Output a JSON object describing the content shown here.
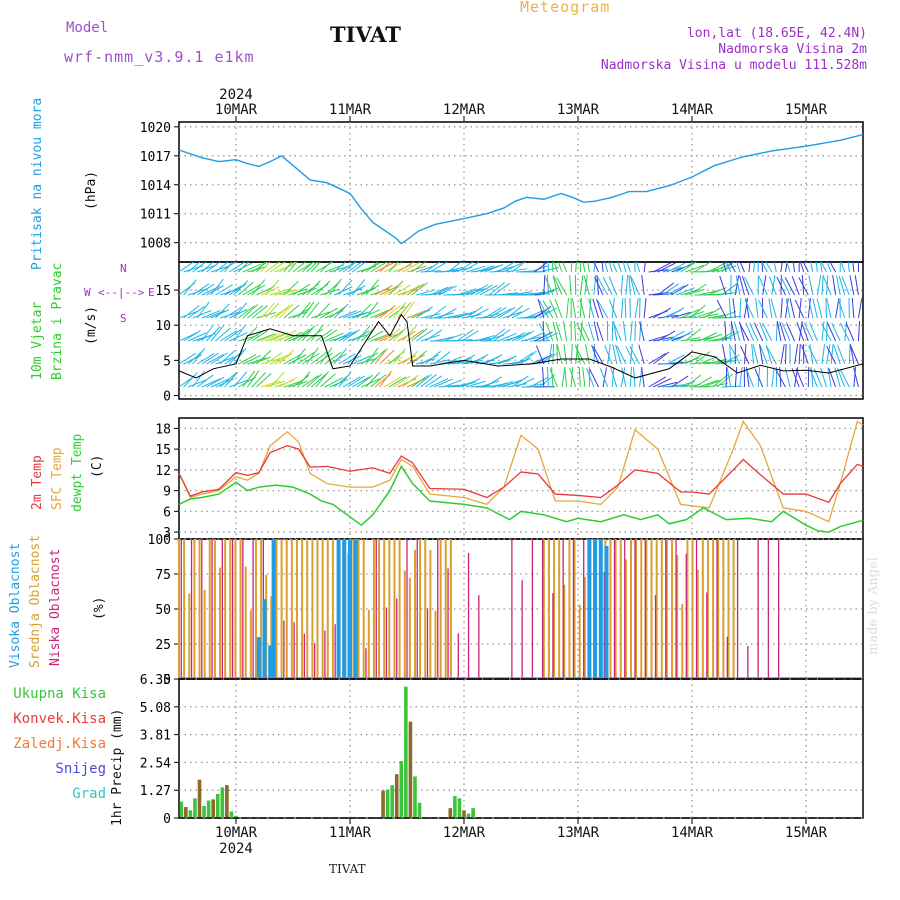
{
  "header": {
    "model_label": "Model",
    "model_name": "wrf-nmm_v3.9.1  e1km",
    "title": "TIVAT",
    "meteogram_label": "Meteogram",
    "location": "lon,lat (18.65E, 42.4N)",
    "elevation": "Nadmorska Visina 2m",
    "model_elevation": "Nadmorska Visina u modelu 111.528m"
  },
  "footer": {
    "station": "TIVAT",
    "credit": "made by Angel"
  },
  "time_axis": {
    "year": "2024",
    "days": [
      "10MAR",
      "11MAR",
      "12MAR",
      "13MAR",
      "14MAR",
      "15MAR"
    ]
  },
  "labels": {
    "pressure": [
      "Pritisak na nivou mora",
      "(hPa)"
    ],
    "wind": [
      "10m Vjetar",
      "Brzina i Pravac",
      "(m/s)"
    ],
    "wind_compass": [
      "W",
      "<--|-->",
      "E",
      "N",
      "S"
    ],
    "temp": [
      "2m Temp",
      "SFC Temp",
      "dewpt Temp",
      "(C)"
    ],
    "cloud": [
      "Visoka Oblacnost",
      "Srednja Oblacnost",
      "Niska Oblacnost",
      "(%)"
    ],
    "precip_axis": "1hr Precip (mm)",
    "precip_legend": [
      "Ukupna Kisa",
      "Konvek.Kisa",
      "Zaledj.Kisa",
      "Snijeg",
      "Grad"
    ]
  },
  "colors": {
    "pressure": "#1e9de6",
    "temp2m": "#e8383a",
    "sfc": "#e8a63a",
    "dewpt": "#2fcc2f",
    "high_cloud": "#1e9de6",
    "mid_cloud": "#d9a030",
    "low_cloud": "#cc2277",
    "total_rain": "#3cc43c",
    "conv_rain": "#e83c3c",
    "freezing_rain": "#f07b35",
    "snow": "#4a4ae0",
    "hail": "#35c4c4"
  },
  "chart_data": [
    {
      "type": "line",
      "name": "pressure",
      "x_unit": "days since 10MAR 00UTC",
      "ylim": [
        1006,
        1020.5
      ],
      "yticks": [
        1008,
        1011,
        1014,
        1017,
        1020
      ],
      "series": [
        {
          "x": [
            -0.5,
            -0.3,
            -0.15,
            0,
            0.1,
            0.2,
            0.3,
            0.4,
            0.5,
            0.65,
            0.8,
            1,
            1.1,
            1.2,
            1.3,
            1.4,
            1.45,
            1.5,
            1.6,
            1.75,
            2,
            2.2,
            2.35,
            2.45,
            2.55,
            2.7,
            2.85,
            2.95,
            3.05,
            3.15,
            3.3,
            3.45,
            3.6,
            3.8,
            4,
            4.2,
            4.45,
            4.7,
            5,
            5.3,
            5.5
          ],
          "y": [
            1017.6,
            1016.8,
            1016.4,
            1016.6,
            1016.2,
            1015.9,
            1016.4,
            1017.0,
            1016.0,
            1014.5,
            1014.2,
            1013.1,
            1011.5,
            1010.1,
            1009.3,
            1008.5,
            1007.9,
            1008.3,
            1009.2,
            1009.9,
            1010.5,
            1011.0,
            1011.6,
            1012.3,
            1012.7,
            1012.5,
            1013.1,
            1012.7,
            1012.2,
            1012.3,
            1012.7,
            1013.3,
            1013.3,
            1013.9,
            1014.8,
            1016.0,
            1016.9,
            1017.5,
            1018.0,
            1018.6,
            1019.2
          ]
        }
      ]
    },
    {
      "type": "line",
      "name": "wind",
      "ylim": [
        -0.5,
        19
      ],
      "yticks": [
        0,
        5,
        10,
        15
      ],
      "series": [
        {
          "name": "speed",
          "x": [
            -0.5,
            -0.35,
            -0.2,
            0,
            0.1,
            0.3,
            0.5,
            0.65,
            0.75,
            0.85,
            1,
            1.15,
            1.25,
            1.35,
            1.45,
            1.5,
            1.55,
            1.7,
            2,
            2.3,
            2.6,
            2.85,
            3.1,
            3.3,
            3.5,
            3.8,
            4,
            4.2,
            4.4,
            4.6,
            4.8,
            5,
            5.2,
            5.5
          ],
          "y": [
            3.5,
            2.5,
            3.8,
            4.5,
            8.5,
            9.5,
            8.5,
            8.5,
            8.5,
            3.8,
            4.2,
            8.0,
            10.5,
            8.5,
            11.5,
            10.5,
            4.2,
            4.2,
            5.0,
            4.2,
            4.5,
            5.2,
            5.2,
            4.0,
            2.5,
            3.8,
            6.2,
            5.5,
            3.2,
            4.3,
            3.5,
            3.6,
            3.2,
            4.5
          ]
        }
      ]
    },
    {
      "type": "line",
      "name": "temperature",
      "ylim": [
        2,
        19.5
      ],
      "yticks": [
        3,
        6,
        9,
        12,
        15,
        18
      ],
      "series": [
        {
          "name": "2m",
          "x": [
            -0.5,
            -0.4,
            -0.3,
            -0.15,
            0,
            0.1,
            0.2,
            0.3,
            0.45,
            0.55,
            0.65,
            0.8,
            1,
            1.2,
            1.35,
            1.45,
            1.55,
            1.7,
            2,
            2.2,
            2.35,
            2.5,
            2.65,
            2.8,
            3,
            3.2,
            3.35,
            3.5,
            3.7,
            3.9,
            4,
            4.15,
            4.35,
            4.45,
            4.6,
            4.8,
            5,
            5.2,
            5.3,
            5.45,
            5.5
          ],
          "y": [
            11.5,
            8.2,
            8.8,
            9.2,
            11.6,
            11.2,
            11.6,
            14.5,
            15.5,
            15.0,
            12.4,
            12.5,
            11.8,
            12.3,
            11.5,
            14.0,
            13.0,
            9.3,
            9.2,
            8.0,
            9.5,
            11.7,
            11.4,
            8.5,
            8.3,
            8.0,
            9.8,
            12.0,
            11.5,
            8.8,
            8.8,
            8.5,
            11.8,
            13.5,
            11.3,
            8.5,
            8.5,
            7.3,
            10.0,
            12.8,
            12.5
          ]
        },
        {
          "name": "sfc",
          "x": [
            -0.5,
            -0.4,
            -0.3,
            -0.15,
            0,
            0.1,
            0.2,
            0.3,
            0.45,
            0.55,
            0.65,
            0.8,
            1,
            1.2,
            1.35,
            1.45,
            1.55,
            1.7,
            2,
            2.2,
            2.35,
            2.5,
            2.65,
            2.8,
            3,
            3.2,
            3.35,
            3.5,
            3.7,
            3.9,
            4,
            4.15,
            4.35,
            4.45,
            4.6,
            4.8,
            5,
            5.2,
            5.3,
            5.45,
            5.5
          ],
          "y": [
            11.5,
            8.0,
            8.5,
            9.0,
            11.0,
            10.5,
            11.5,
            15.5,
            17.5,
            16.0,
            11.5,
            10.0,
            9.5,
            9.5,
            10.5,
            13.5,
            12.5,
            8.5,
            8.0,
            7.0,
            9.5,
            17.0,
            15.0,
            7.5,
            7.5,
            7.0,
            9.5,
            17.8,
            15.0,
            7.0,
            6.8,
            6.5,
            14.5,
            19.0,
            15.5,
            6.5,
            6.0,
            4.5,
            10.0,
            19.0,
            18.5
          ]
        },
        {
          "name": "dewpt",
          "x": [
            -0.5,
            -0.4,
            -0.3,
            -0.15,
            0,
            0.1,
            0.2,
            0.35,
            0.5,
            0.65,
            0.75,
            0.85,
            1,
            1.1,
            1.2,
            1.35,
            1.45,
            1.55,
            1.7,
            2,
            2.2,
            2.4,
            2.5,
            2.7,
            2.9,
            3,
            3.2,
            3.4,
            3.55,
            3.7,
            3.8,
            3.95,
            4.1,
            4.3,
            4.5,
            4.7,
            4.8,
            5,
            5.1,
            5.2,
            5.3,
            5.5
          ],
          "y": [
            7.0,
            7.8,
            8.0,
            8.5,
            10.2,
            9.0,
            9.5,
            9.8,
            9.5,
            8.5,
            7.5,
            7.0,
            5.2,
            4.0,
            5.5,
            9.0,
            12.5,
            10.0,
            7.5,
            7.0,
            6.5,
            4.8,
            6.0,
            5.5,
            4.5,
            5.0,
            4.5,
            5.5,
            4.8,
            5.5,
            4.2,
            4.8,
            6.5,
            4.8,
            5.0,
            4.5,
            6.0,
            4.0,
            3.2,
            3.0,
            3.8,
            4.7
          ]
        }
      ]
    },
    {
      "type": "bar",
      "name": "cloud_cover",
      "ylim": [
        0,
        100
      ],
      "yticks": [
        0,
        25,
        50,
        75,
        100
      ],
      "series": [
        {
          "name": "high",
          "x": [
            0.2,
            0.25,
            0.3,
            0.33,
            0.9,
            0.95,
            1.0,
            1.05,
            3.1,
            3.15,
            3.2,
            3.25
          ],
          "y": [
            30,
            57,
            24,
            100,
            100,
            100,
            100,
            100,
            100,
            100,
            100,
            95
          ]
        },
        {
          "name": "mid",
          "x_range": [
            [
              -0.5,
              1.9
            ],
            [
              2.7,
              4.4
            ]
          ],
          "y": 100
        },
        {
          "name": "low",
          "x_range": [
            [
              -0.5,
              2.2
            ],
            [
              2.4,
              4.8
            ]
          ],
          "y": 100
        }
      ]
    },
    {
      "type": "bar",
      "name": "precipitation",
      "ylim": [
        0,
        6.35
      ],
      "yticks": [
        0,
        1.27,
        2.54,
        3.81,
        5.08,
        6.35
      ],
      "series": [
        {
          "name": "total",
          "x": [
            -0.48,
            -0.44,
            -0.4,
            -0.36,
            -0.32,
            -0.28,
            -0.24,
            -0.2,
            -0.16,
            -0.12,
            -0.08,
            -0.04,
            0,
            1.29,
            1.33,
            1.37,
            1.41,
            1.45,
            1.49,
            1.53,
            1.57,
            1.61,
            1.88,
            1.92,
            1.96,
            2.0,
            2.04,
            2.08
          ],
          "y": [
            0.75,
            0.5,
            0.35,
            0.9,
            1.75,
            0.55,
            0.8,
            0.85,
            1.1,
            1.4,
            1.5,
            0.3,
            0.1,
            1.25,
            1.3,
            1.5,
            2.0,
            2.6,
            6.0,
            4.4,
            1.9,
            0.7,
            0.45,
            1.0,
            0.9,
            0.35,
            0.2,
            0.45
          ]
        }
      ]
    }
  ]
}
